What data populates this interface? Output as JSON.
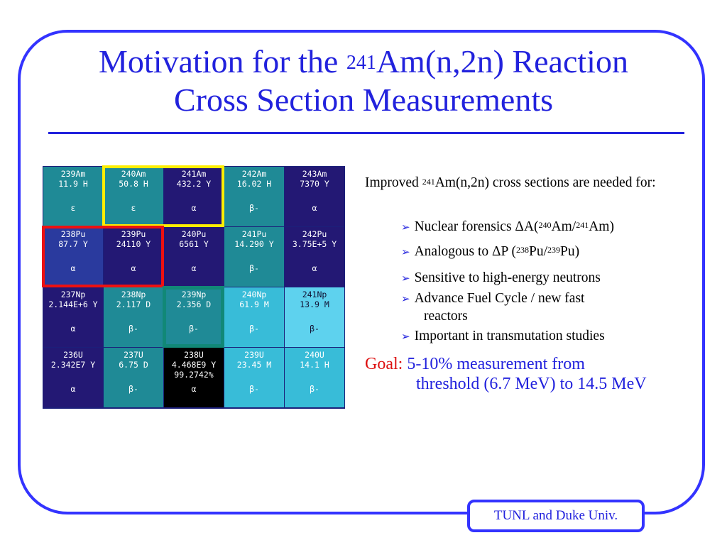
{
  "slide": {
    "title_line1_pre": "Motivation for the ",
    "title_sup": "241",
    "title_line1_post": "Am(n,2n) Reaction",
    "title_line2": "Cross Section Measurements",
    "footer": "TUNL and Duke Univ."
  },
  "chart": {
    "rows": [
      [
        {
          "name": "239Am",
          "halflife": "11.9 H",
          "decay": "ε",
          "color": "#1f8a96",
          "text": "#ffffff"
        },
        {
          "name": "240Am",
          "halflife": "50.8 H",
          "decay": "ε",
          "color": "#1f8a96",
          "text": "#ffffff"
        },
        {
          "name": "241Am",
          "halflife": "432.2 Y",
          "decay": "α",
          "color": "#231874",
          "text": "#ffffff"
        },
        {
          "name": "242Am",
          "halflife": "16.02 H",
          "decay": "β-",
          "color": "#1f8a96",
          "text": "#ffffff"
        },
        {
          "name": "243Am",
          "halflife": "7370 Y",
          "decay": "α",
          "color": "#231874",
          "text": "#ffffff"
        }
      ],
      [
        {
          "name": "238Pu",
          "halflife": "87.7 Y",
          "decay": "α",
          "color": "#2a3a9e",
          "text": "#ffffff"
        },
        {
          "name": "239Pu",
          "halflife": "24110 Y",
          "decay": "α",
          "color": "#231874",
          "text": "#ffffff"
        },
        {
          "name": "240Pu",
          "halflife": "6561 Y",
          "decay": "α",
          "color": "#231874",
          "text": "#ffffff"
        },
        {
          "name": "241Pu",
          "halflife": "14.290 Y",
          "decay": "β-",
          "color": "#1f8a96",
          "text": "#ffffff"
        },
        {
          "name": "242Pu",
          "halflife": "3.75E+5 Y",
          "decay": "α",
          "color": "#231874",
          "text": "#ffffff"
        }
      ],
      [
        {
          "name": "237Np",
          "halflife": "2.144E+6 Y",
          "decay": "α",
          "color": "#231874",
          "text": "#ffffff"
        },
        {
          "name": "238Np",
          "halflife": "2.117 D",
          "decay": "β-",
          "color": "#1f8a96",
          "text": "#ffffff"
        },
        {
          "name": "239Np",
          "halflife": "2.356 D",
          "decay": "β-",
          "color": "#1f8a96",
          "text": "#ffffff"
        },
        {
          "name": "240Np",
          "halflife": "61.9 M",
          "decay": "β-",
          "color": "#38bcd8",
          "text": "#ffffff"
        },
        {
          "name": "241Np",
          "halflife": "13.9 M",
          "decay": "β-",
          "color": "#5ed2ee",
          "text": "#111133"
        }
      ],
      [
        {
          "name": "236U",
          "halflife": "2.342E7 Y",
          "decay": "α",
          "color": "#231874",
          "text": "#ffffff"
        },
        {
          "name": "237U",
          "halflife": "6.75 D",
          "decay": "β-",
          "color": "#1f8a96",
          "text": "#ffffff"
        },
        {
          "name": "238U",
          "halflife": "4.468E9 Y",
          "abundance": "99.2742%",
          "decay": "α",
          "color": "#000000",
          "text": "#ffffff"
        },
        {
          "name": "239U",
          "halflife": "23.45 M",
          "decay": "β-",
          "color": "#38bcd8",
          "text": "#ffffff"
        },
        {
          "name": "240U",
          "halflife": "14.1 H",
          "decay": "β-",
          "color": "#38bcd8",
          "text": "#ffffff"
        }
      ]
    ],
    "highlights": {
      "yellow": "#ffee00",
      "red": "#ee1111",
      "teal": "#118877"
    }
  },
  "text": {
    "intro_pre": "Improved ",
    "intro_sup": "241",
    "intro_post": "Am(n,2n) cross sections are needed for:",
    "bullet_arrow": "➢",
    "b1_pre": "Nuclear forensics  ΔA(",
    "b1_sup1": "240",
    "b1_mid": "Am/",
    "b1_sup2": "241",
    "b1_post": "Am)",
    "b2_pre": "Analogous to ΔP (",
    "b2_sup1": "238",
    "b2_mid": "Pu/",
    "b2_sup2": "239",
    "b2_post": "Pu)",
    "b3": "Sensitive to high-energy neutrons",
    "b4_line1": "Advance Fuel Cycle / new fast",
    "b4_line2": "reactors",
    "b5": "Important in transmutation studies",
    "goal_label": "Goal:",
    "goal_line1": "5-10% measurement from",
    "goal_line2": "threshold (6.7 MeV) to 14.5 MeV"
  }
}
